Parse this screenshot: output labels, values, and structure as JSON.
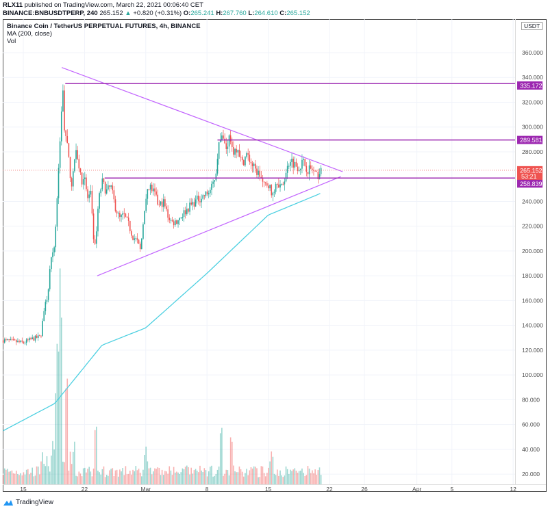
{
  "header": {
    "author": "RLX11",
    "published": "published on TradingView.com, March 22, 2021 00:06:40 CET",
    "symbol": "BINANCE:BNBUSDTPERP, 240",
    "last": "265.152",
    "change": "+0.820 (+0.31%)",
    "o_label": "O:",
    "o": "265.241",
    "h_label": "H:",
    "h": "267.760",
    "l_label": "L:",
    "l": "264.610",
    "c_label": "C:",
    "c": "265.152"
  },
  "legend": {
    "title": "Binance Coin / TetherUS PERPETUAL FUTURES, 4h, BINANCE",
    "ma": "MA (200, close)",
    "vol": "Vol"
  },
  "currency": "USDT",
  "footer": {
    "brand": "TradingView"
  },
  "colors": {
    "up": "#26a69a",
    "down": "#ef5350",
    "ma": "#4dd0e1",
    "line": "#9c27b0",
    "trend": "#c264fe"
  },
  "chart_data": {
    "type": "candlestick",
    "title": "Binance Coin / TetherUS PERPETUAL FUTURES, 4h, BINANCE",
    "y_ticks": [
      "360.000",
      "340.000",
      "320.000",
      "300.000",
      "280.000",
      "240.000",
      "220.000",
      "200.000",
      "180.000",
      "160.000",
      "140.000",
      "120.000",
      "100.000",
      "80.000",
      "60.000",
      "40.000",
      "20.000"
    ],
    "y_tick_values": [
      360,
      340,
      320,
      300,
      280,
      240,
      220,
      200,
      180,
      160,
      140,
      120,
      100,
      80,
      60,
      40,
      20
    ],
    "ylim": [
      12,
      380
    ],
    "x_ticks": [
      {
        "label": "15",
        "day": 0
      },
      {
        "label": "22",
        "day": 7
      },
      {
        "label": "Mar",
        "day": 14
      },
      {
        "label": "8",
        "day": 21
      },
      {
        "label": "15",
        "day": 28
      },
      {
        "label": "22",
        "day": 35
      },
      {
        "label": "26",
        "day": 39
      },
      {
        "label": "Apr",
        "day": 45
      },
      {
        "label": "5",
        "day": 49
      },
      {
        "label": "12",
        "day": 56
      }
    ],
    "x_unit": "days since Feb 15 2021",
    "price_path": [
      [
        -2.3,
        128
      ],
      [
        0,
        126
      ],
      [
        1,
        129
      ],
      [
        2,
        131
      ],
      [
        2.3,
        150
      ],
      [
        2.8,
        165
      ],
      [
        3.1,
        190
      ],
      [
        3.5,
        200
      ],
      [
        3.8,
        232
      ],
      [
        4.1,
        272
      ],
      [
        4.3,
        305
      ],
      [
        4.5,
        337
      ],
      [
        4.7,
        300
      ],
      [
        5,
        288
      ],
      [
        5.3,
        265
      ],
      [
        5.6,
        252
      ],
      [
        6,
        286
      ],
      [
        6.3,
        272
      ],
      [
        6.6,
        256
      ],
      [
        7,
        262
      ],
      [
        7.3,
        242
      ],
      [
        7.7,
        246
      ],
      [
        8,
        212
      ],
      [
        8.2,
        203
      ],
      [
        8.6,
        240
      ],
      [
        9,
        256
      ],
      [
        9.5,
        248
      ],
      [
        10,
        252
      ],
      [
        10.5,
        236
      ],
      [
        11,
        226
      ],
      [
        11.5,
        229
      ],
      [
        12,
        222
      ],
      [
        12.5,
        212
      ],
      [
        13,
        208
      ],
      [
        13.4,
        200
      ],
      [
        14,
        245
      ],
      [
        14.5,
        252
      ],
      [
        15,
        246
      ],
      [
        15.5,
        236
      ],
      [
        16,
        240
      ],
      [
        16.5,
        229
      ],
      [
        17,
        223
      ],
      [
        17.5,
        224
      ],
      [
        18,
        228
      ],
      [
        18.5,
        232
      ],
      [
        19,
        236
      ],
      [
        20,
        242
      ],
      [
        21,
        246
      ],
      [
        21.5,
        250
      ],
      [
        22,
        262
      ],
      [
        22.3,
        285
      ],
      [
        22.8,
        290
      ],
      [
        23.2,
        283
      ],
      [
        23.6,
        293
      ],
      [
        24,
        280
      ],
      [
        24.5,
        285
      ],
      [
        25,
        270
      ],
      [
        25.5,
        278
      ],
      [
        26,
        272
      ],
      [
        26.5,
        265
      ],
      [
        27,
        262
      ],
      [
        27.5,
        252
      ],
      [
        28,
        255
      ],
      [
        28.5,
        245
      ],
      [
        29,
        258
      ],
      [
        29.5,
        250
      ],
      [
        30,
        262
      ],
      [
        30.5,
        275
      ],
      [
        31,
        270
      ],
      [
        31.5,
        268
      ],
      [
        32,
        272
      ],
      [
        32.5,
        266
      ],
      [
        33,
        266
      ],
      [
        33.5,
        260
      ],
      [
        34.17,
        265.152
      ]
    ],
    "ma200_path": [
      [
        -2.3,
        55
      ],
      [
        3.6,
        77
      ],
      [
        9,
        124
      ],
      [
        14,
        138
      ],
      [
        21,
        182
      ],
      [
        28,
        229
      ],
      [
        34.17,
        247
      ]
    ],
    "volume_spikes": [
      [
        4.2,
        1.0
      ],
      [
        4.0,
        0.75
      ],
      [
        3.8,
        0.5
      ],
      [
        8.3,
        0.6
      ],
      [
        5,
        0.45
      ],
      [
        22.6,
        0.62
      ],
      [
        23.8,
        0.5
      ],
      [
        14,
        0.35
      ],
      [
        28.4,
        0.35
      ]
    ],
    "horizontal_levels": [
      {
        "label": "335.172",
        "price": 335.172,
        "from_day": 4.8
      },
      {
        "label": "289.581",
        "price": 289.581,
        "from_day": 22.2
      },
      {
        "label": "258.839",
        "price": 258.839,
        "from_day": 9.3
      }
    ],
    "triangle": {
      "upper": [
        [
          4.4,
          348
        ],
        [
          36.5,
          264
        ]
      ],
      "lower": [
        [
          8.45,
          180
        ],
        [
          36.3,
          260
        ]
      ]
    },
    "last_price": {
      "label": "265.152",
      "price": 265.152,
      "countdown": "53:21"
    }
  }
}
